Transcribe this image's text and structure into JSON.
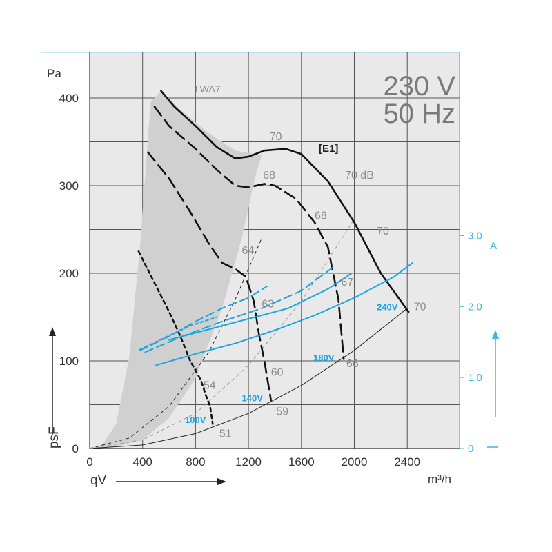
{
  "header": {
    "voltage": "230 V",
    "frequency": "50 Hz"
  },
  "chart_data": {
    "type": "line",
    "x_unit": "m³/h",
    "xlabel": "qV",
    "ylabel": "psF",
    "y_unit": "Pa",
    "right_axis_unit": "A",
    "xlim": [
      0,
      2800
    ],
    "ylim": [
      0,
      420
    ],
    "x_ticks": [
      "0",
      "400",
      "800",
      "1200",
      "1600",
      "2000",
      "2400"
    ],
    "y_ticks": [
      "0",
      "100",
      "200",
      "300",
      "400"
    ],
    "right_ticks": [
      {
        "label": "0",
        "value": 0
      },
      {
        "label": "1.0",
        "value": 1.0
      },
      {
        "label": "2.0",
        "value": 2.0
      },
      {
        "label": "3.0",
        "value": 3.0
      }
    ],
    "right_axis_pa_per_amp": 81,
    "noise_label": "LWA7",
    "curve_label": "[E1]",
    "pressure_curves": [
      {
        "name": "240V",
        "style": "solid",
        "points": [
          [
            540,
            408
          ],
          [
            640,
            390
          ],
          [
            800,
            368
          ],
          [
            960,
            344
          ],
          [
            1100,
            331
          ],
          [
            1200,
            333
          ],
          [
            1320,
            340
          ],
          [
            1480,
            342
          ],
          [
            1600,
            336
          ],
          [
            1800,
            305
          ],
          [
            2000,
            258
          ],
          [
            2200,
            200
          ],
          [
            2410,
            156
          ]
        ]
      },
      {
        "name": "180V",
        "style": "dashed",
        "points": [
          [
            490,
            390
          ],
          [
            600,
            368
          ],
          [
            800,
            342
          ],
          [
            960,
            318
          ],
          [
            1100,
            300
          ],
          [
            1200,
            298
          ],
          [
            1320,
            302
          ],
          [
            1400,
            300
          ],
          [
            1560,
            285
          ],
          [
            1700,
            258
          ],
          [
            1800,
            230
          ],
          [
            1880,
            170
          ],
          [
            1920,
            102
          ]
        ]
      },
      {
        "name": "140V",
        "style": "dashed",
        "points": [
          [
            440,
            338
          ],
          [
            600,
            308
          ],
          [
            760,
            270
          ],
          [
            900,
            234
          ],
          [
            1000,
            212
          ],
          [
            1100,
            205
          ],
          [
            1180,
            196
          ],
          [
            1240,
            168
          ],
          [
            1280,
            130
          ],
          [
            1320,
            100
          ],
          [
            1370,
            55
          ]
        ]
      },
      {
        "name": "100V",
        "style": "dotted",
        "points": [
          [
            370,
            225
          ],
          [
            480,
            192
          ],
          [
            600,
            156
          ],
          [
            680,
            130
          ],
          [
            760,
            100
          ],
          [
            840,
            78
          ],
          [
            880,
            60
          ],
          [
            910,
            48
          ],
          [
            930,
            28
          ]
        ]
      }
    ],
    "current_curves": [
      {
        "name": "240V",
        "style": "solid",
        "points": [
          [
            500,
            95
          ],
          [
            800,
            108
          ],
          [
            1100,
            120
          ],
          [
            1400,
            135
          ],
          [
            1700,
            152
          ],
          [
            2000,
            172
          ],
          [
            2300,
            196
          ],
          [
            2440,
            212
          ]
        ]
      },
      {
        "name": "180V",
        "style": "solid",
        "points": [
          [
            600,
            124
          ],
          [
            900,
            136
          ],
          [
            1200,
            148
          ],
          [
            1500,
            160
          ],
          [
            1800,
            182
          ],
          [
            1980,
            200
          ]
        ]
      },
      {
        "name": "180V",
        "style": "dashed",
        "points": [
          [
            420,
            110
          ],
          [
            700,
            128
          ],
          [
            1000,
            145
          ],
          [
            1300,
            160
          ],
          [
            1600,
            180
          ],
          [
            1850,
            208
          ]
        ]
      },
      {
        "name": "140V",
        "style": "dashed",
        "points": [
          [
            380,
            112
          ],
          [
            600,
            128
          ],
          [
            800,
            145
          ],
          [
            1000,
            160
          ],
          [
            1200,
            172
          ],
          [
            1340,
            185
          ]
        ]
      },
      {
        "name": "100V",
        "style": "dotted",
        "points": [
          [
            380,
            113
          ],
          [
            560,
            126
          ],
          [
            760,
            140
          ],
          [
            960,
            150
          ]
        ]
      }
    ],
    "system_curves": [
      {
        "style": "solid",
        "points": [
          [
            0,
            0
          ],
          [
            400,
            4
          ],
          [
            800,
            17
          ],
          [
            1200,
            40
          ],
          [
            1600,
            72
          ],
          [
            2000,
            112
          ],
          [
            2400,
            160
          ]
        ]
      },
      {
        "style": "dashed",
        "points": [
          [
            0,
            0
          ],
          [
            300,
            12
          ],
          [
            600,
            48
          ],
          [
            900,
            110
          ],
          [
            1100,
            170
          ],
          [
            1300,
            240
          ]
        ]
      },
      {
        "style": "dashed",
        "points": [
          [
            0,
            0
          ],
          [
            400,
            10
          ],
          [
            800,
            40
          ],
          [
            1200,
            95
          ],
          [
            1600,
            168
          ],
          [
            2000,
            262
          ]
        ]
      }
    ],
    "shaded_region": [
      [
        0,
        0
      ],
      [
        100,
        5
      ],
      [
        200,
        28
      ],
      [
        300,
        105
      ],
      [
        380,
        230
      ],
      [
        460,
        395
      ],
      [
        540,
        408
      ],
      [
        700,
        385
      ],
      [
        900,
        360
      ],
      [
        1100,
        340
      ],
      [
        1300,
        335
      ],
      [
        1250,
        310
      ],
      [
        1150,
        240
      ],
      [
        1000,
        160
      ],
      [
        800,
        80
      ],
      [
        600,
        35
      ],
      [
        400,
        10
      ],
      [
        200,
        2
      ]
    ],
    "point_labels": [
      {
        "text": "70",
        "x": 1360,
        "y": 352
      },
      {
        "text": "68",
        "x": 1310,
        "y": 308
      },
      {
        "text": "70 dB",
        "x": 1930,
        "y": 308
      },
      {
        "text": "68",
        "x": 1700,
        "y": 262
      },
      {
        "text": "70",
        "x": 2170,
        "y": 244
      },
      {
        "text": "64",
        "x": 1150,
        "y": 222
      },
      {
        "text": "67",
        "x": 1900,
        "y": 186
      },
      {
        "text": "63",
        "x": 1300,
        "y": 161
      },
      {
        "text": "70",
        "x": 2450,
        "y": 158
      },
      {
        "text": "60",
        "x": 1370,
        "y": 83
      },
      {
        "text": "66",
        "x": 1940,
        "y": 93
      },
      {
        "text": "54",
        "x": 860,
        "y": 68
      },
      {
        "text": "59",
        "x": 1410,
        "y": 38
      },
      {
        "text": "51",
        "x": 980,
        "y": 13
      }
    ],
    "voltage_labels": [
      {
        "text": "240V",
        "x": 2170,
        "y": 158
      },
      {
        "text": "180V",
        "x": 1690,
        "y": 100
      },
      {
        "text": "140V",
        "x": 1150,
        "y": 54
      },
      {
        "text": "100V",
        "x": 720,
        "y": 29
      }
    ]
  }
}
